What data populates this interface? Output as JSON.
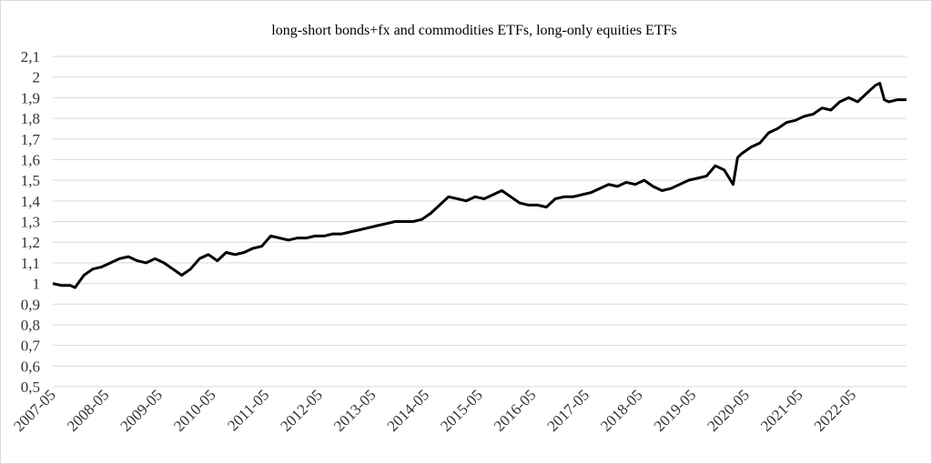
{
  "chart_data": {
    "type": "line",
    "title": "long-short bonds+fx and commodities ETFs, long-only equities ETFs",
    "xlabel": "",
    "ylabel": "",
    "ylim": [
      0.5,
      2.1
    ],
    "xlim": [
      "2007-05",
      "2023-05"
    ],
    "grid": "horizontal",
    "legend": "none",
    "line_color": "#000000",
    "y_ticks": [
      "0,5",
      "0,6",
      "0,7",
      "0,8",
      "0,9",
      "1",
      "1,1",
      "1,2",
      "1,3",
      "1,4",
      "1,5",
      "1,6",
      "1,7",
      "1,8",
      "1,9",
      "2",
      "2,1"
    ],
    "x_ticks": [
      "2007-05",
      "2008-05",
      "2009-05",
      "2010-05",
      "2011-05",
      "2012-05",
      "2013-05",
      "2014-05",
      "2015-05",
      "2016-05",
      "2017-05",
      "2018-05",
      "2019-05",
      "2020-05",
      "2021-05",
      "2022-05"
    ],
    "series": [
      {
        "x": [
          "2007-05",
          "2007-07",
          "2007-09",
          "2007-10",
          "2007-12",
          "2008-02",
          "2008-04",
          "2008-06",
          "2008-08",
          "2008-10",
          "2008-12",
          "2009-02",
          "2009-04",
          "2009-06",
          "2009-08",
          "2009-10",
          "2009-12",
          "2010-02",
          "2010-04",
          "2010-06",
          "2010-08",
          "2010-10",
          "2010-12",
          "2011-02",
          "2011-04",
          "2011-06",
          "2011-08",
          "2011-10",
          "2011-12",
          "2012-02",
          "2012-04",
          "2012-06",
          "2012-08",
          "2012-10",
          "2012-12",
          "2013-02",
          "2013-04",
          "2013-06",
          "2013-08",
          "2013-10",
          "2013-12",
          "2014-02",
          "2014-04",
          "2014-06",
          "2014-08",
          "2014-10",
          "2014-12",
          "2015-02",
          "2015-04",
          "2015-06",
          "2015-08",
          "2015-10",
          "2015-12",
          "2016-02",
          "2016-04",
          "2016-06",
          "2016-08",
          "2016-10",
          "2016-12",
          "2017-02",
          "2017-04",
          "2017-06",
          "2017-08",
          "2017-10",
          "2017-12",
          "2018-02",
          "2018-04",
          "2018-06",
          "2018-08",
          "2018-10",
          "2018-12",
          "2019-02",
          "2019-04",
          "2019-06",
          "2019-08",
          "2019-10",
          "2019-12",
          "2020-02",
          "2020-03",
          "2020-04",
          "2020-06",
          "2020-08",
          "2020-10",
          "2020-12",
          "2021-02",
          "2021-04",
          "2021-06",
          "2021-08",
          "2021-10",
          "2021-12",
          "2022-02",
          "2022-04",
          "2022-06",
          "2022-08",
          "2022-10",
          "2022-11",
          "2022-12",
          "2023-01",
          "2023-03",
          "2023-05"
        ],
        "values": [
          1.0,
          0.99,
          0.99,
          0.98,
          1.04,
          1.07,
          1.08,
          1.1,
          1.12,
          1.13,
          1.11,
          1.1,
          1.12,
          1.1,
          1.07,
          1.04,
          1.07,
          1.12,
          1.14,
          1.11,
          1.15,
          1.14,
          1.15,
          1.17,
          1.18,
          1.23,
          1.22,
          1.21,
          1.22,
          1.22,
          1.23,
          1.23,
          1.24,
          1.24,
          1.25,
          1.26,
          1.27,
          1.28,
          1.29,
          1.3,
          1.3,
          1.3,
          1.31,
          1.34,
          1.38,
          1.42,
          1.41,
          1.4,
          1.42,
          1.41,
          1.43,
          1.45,
          1.42,
          1.39,
          1.38,
          1.38,
          1.37,
          1.41,
          1.42,
          1.42,
          1.43,
          1.44,
          1.46,
          1.48,
          1.47,
          1.49,
          1.48,
          1.5,
          1.47,
          1.45,
          1.46,
          1.48,
          1.5,
          1.51,
          1.52,
          1.57,
          1.55,
          1.48,
          1.61,
          1.63,
          1.66,
          1.68,
          1.73,
          1.75,
          1.78,
          1.79,
          1.81,
          1.82,
          1.85,
          1.84,
          1.88,
          1.9,
          1.88,
          1.92,
          1.96,
          1.97,
          1.89,
          1.88,
          1.89,
          1.89
        ]
      }
    ]
  }
}
